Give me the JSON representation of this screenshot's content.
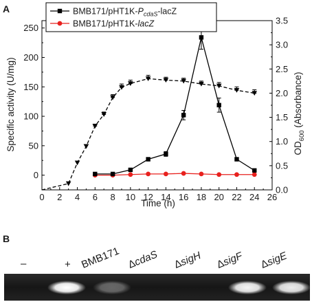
{
  "panels": {
    "a_label": "A",
    "b_label": "B"
  },
  "chart_data": {
    "type": "line",
    "title": "",
    "xlabel": "Time (h)",
    "ylabel_left": "Specific activity (U/mg)",
    "ylabel_right": "OD600 (Absorbance)",
    "ylabel_right_parts": [
      "OD",
      "600",
      " (Absorbance)"
    ],
    "xlim": [
      0,
      26
    ],
    "ylim_left": [
      -25,
      262.5
    ],
    "ylim_right": [
      0,
      3.5
    ],
    "x_ticks": [
      "0",
      "2",
      "4",
      "6",
      "8",
      "10",
      "12",
      "14",
      "16",
      "18",
      "20",
      "22",
      "24",
      "26"
    ],
    "y_left_ticks": [
      "0",
      "50",
      "100",
      "150",
      "200",
      "250"
    ],
    "y_right_ticks": [
      "0.0",
      "0.5",
      "1.0",
      "1.5",
      "2.0",
      "2.5",
      "3.0",
      "3.5"
    ],
    "legend_position": "top-center",
    "series": [
      {
        "name": "BMB171/pHT1K-PcdaS-lacZ",
        "name_parts": [
          "BMB171/pHT1K-",
          "P",
          "cdaS",
          "-lacZ"
        ],
        "axis": "left",
        "color": "#000000",
        "marker": "square",
        "line": "solid",
        "x": [
          6,
          8,
          10,
          12,
          14,
          16,
          18,
          20,
          22,
          24
        ],
        "y": [
          2,
          2,
          9,
          27,
          36,
          102,
          234,
          119,
          27,
          8
        ],
        "err": [
          2,
          2,
          2,
          2,
          4,
          8,
          20,
          12,
          2,
          2
        ]
      },
      {
        "name": "BMB171/pHT1K-lacZ",
        "name_parts": [
          "BMB171/pHT1K-",
          "lacZ"
        ],
        "axis": "left",
        "color": "#e8211e",
        "marker": "circle",
        "line": "solid",
        "x": [
          6,
          8,
          10,
          12,
          14,
          16,
          18,
          20,
          22,
          24
        ],
        "y": [
          0,
          0,
          1,
          2,
          2,
          3,
          2,
          1,
          1,
          1
        ],
        "err": [
          0,
          0,
          0,
          0,
          0,
          0,
          0,
          0,
          0,
          0
        ]
      },
      {
        "name": "",
        "axis": "right",
        "color": "#000000",
        "marker": "triangle-down",
        "line": "dashed",
        "x": [
          0,
          3,
          4,
          5,
          6,
          7,
          8,
          9,
          10,
          12,
          14,
          16,
          18,
          20,
          22,
          24
        ],
        "y": [
          0.0,
          0.13,
          0.56,
          0.9,
          1.32,
          1.56,
          1.91,
          2.12,
          2.2,
          2.3,
          2.27,
          2.25,
          2.19,
          2.15,
          2.06,
          2.0
        ],
        "err": [
          0,
          0,
          0,
          0,
          0.04,
          0.05,
          0.06,
          0.07,
          0.07,
          0.07,
          0.06,
          0.06,
          0.06,
          0.07,
          0.07,
          0.07
        ]
      }
    ]
  },
  "gel": {
    "lanes": [
      {
        "label": "–",
        "italic": false,
        "band": 0.0
      },
      {
        "label": "+",
        "italic": false,
        "band": 1.0
      },
      {
        "label": "BMB171",
        "italic": false,
        "band": 0.35
      },
      {
        "label": "ΔcdaS",
        "italic": true,
        "band": 0.0
      },
      {
        "label": "ΔsigH",
        "italic": true,
        "band": 0.0
      },
      {
        "label": "ΔsigF",
        "italic": true,
        "band": 0.95
      },
      {
        "label": "ΔsigE",
        "italic": true,
        "band": 0.92
      }
    ]
  }
}
